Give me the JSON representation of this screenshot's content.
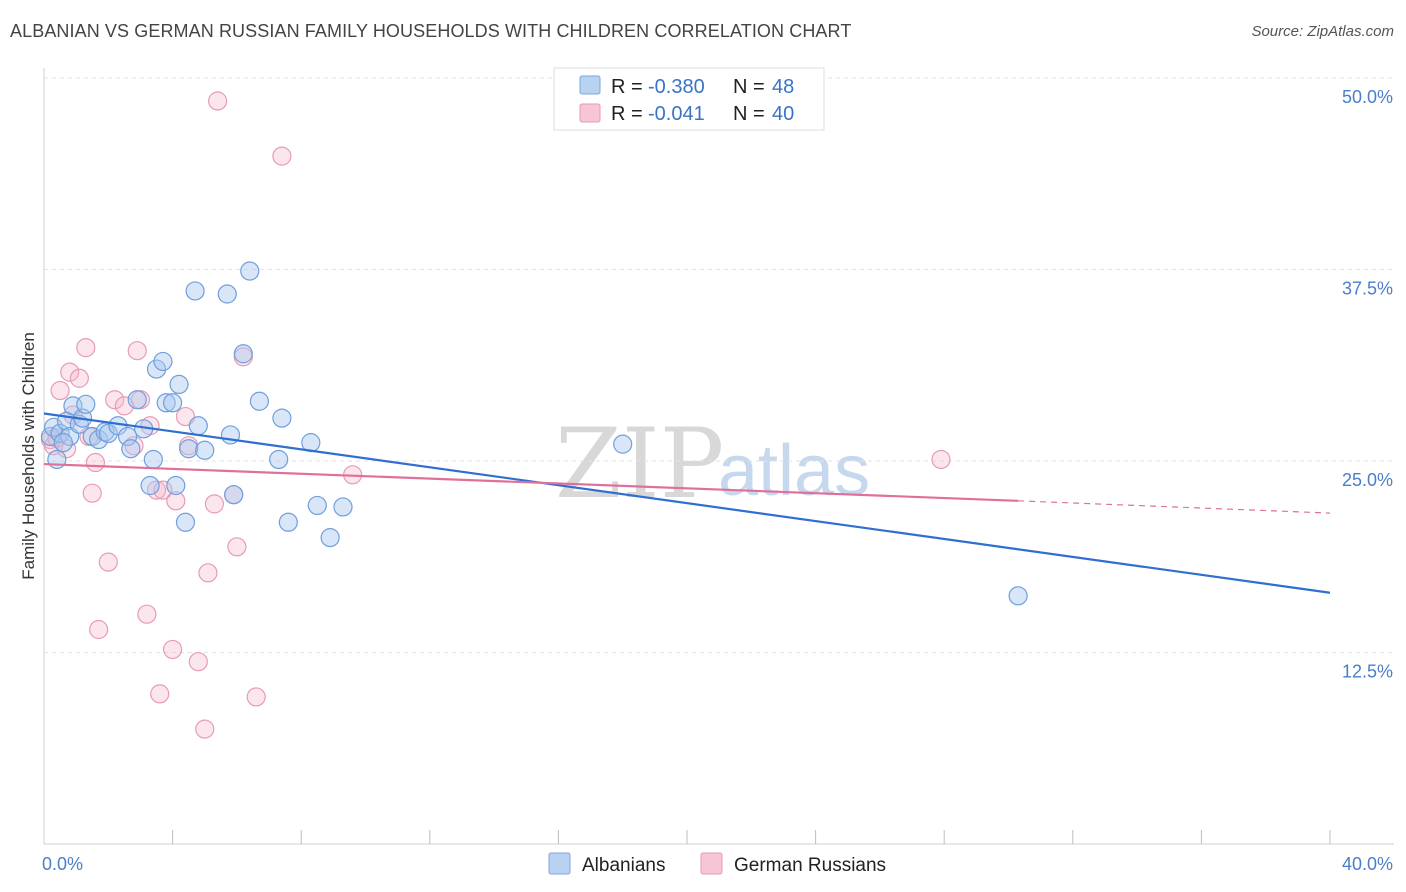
{
  "title": "ALBANIAN VS GERMAN RUSSIAN FAMILY HOUSEHOLDS WITH CHILDREN CORRELATION CHART",
  "source": "Source: ZipAtlas.com",
  "watermark": {
    "zip": "ZIP",
    "atlas": "atlas"
  },
  "colors": {
    "blue": "#4a86d8",
    "blue_fill": "#a9c8f0",
    "pink": "#e07aa0",
    "pink_fill": "#f4b8cc",
    "trend_blue": "#2f6fd0",
    "trend_pink": "#e0709a"
  },
  "legend": {
    "items": [
      {
        "r_label": "R = ",
        "r_value": "-0.380",
        "n_label": "N = ",
        "n_value": "48"
      },
      {
        "r_label": "R = ",
        "r_value": "-0.041",
        "n_label": "N = ",
        "n_value": "40"
      }
    ]
  },
  "bottom_legend": [
    "Albanians",
    "German Russians"
  ],
  "chart_data": {
    "type": "scatter",
    "title": "ALBANIAN VS GERMAN RUSSIAN FAMILY HOUSEHOLDS WITH CHILDREN CORRELATION CHART",
    "xlabel": "",
    "ylabel": "Family Households with Children",
    "xlim": [
      0,
      40
    ],
    "ylim": [
      0,
      52
    ],
    "x_tick_labels": [
      "0.0%",
      "40.0%"
    ],
    "y_ticks": [
      12.5,
      25.0,
      37.5,
      50.0
    ],
    "y_tick_labels": [
      "12.5%",
      "25.0%",
      "37.5%",
      "50.0%"
    ],
    "series": [
      {
        "name": "Albanians",
        "r": -0.38,
        "n": 48,
        "trend": {
          "x": [
            0,
            40
          ],
          "y": [
            28.1,
            16.4
          ]
        },
        "points": [
          [
            0.2,
            26.6
          ],
          [
            0.3,
            27.2
          ],
          [
            0.4,
            25.1
          ],
          [
            0.5,
            26.8
          ],
          [
            0.7,
            27.6
          ],
          [
            0.8,
            26.6
          ],
          [
            0.9,
            28.6
          ],
          [
            1.1,
            27.4
          ],
          [
            1.2,
            27.8
          ],
          [
            1.3,
            28.7
          ],
          [
            1.5,
            26.6
          ],
          [
            1.7,
            26.4
          ],
          [
            1.9,
            26.9
          ],
          [
            2.0,
            26.8
          ],
          [
            2.3,
            27.3
          ],
          [
            2.6,
            26.6
          ],
          [
            2.7,
            25.8
          ],
          [
            2.9,
            29.0
          ],
          [
            3.1,
            27.1
          ],
          [
            3.3,
            23.4
          ],
          [
            3.4,
            25.1
          ],
          [
            3.5,
            31.0
          ],
          [
            3.7,
            31.5
          ],
          [
            3.8,
            28.8
          ],
          [
            4.0,
            28.8
          ],
          [
            4.1,
            23.4
          ],
          [
            4.2,
            30.0
          ],
          [
            4.4,
            21.0
          ],
          [
            4.5,
            25.8
          ],
          [
            4.7,
            36.1
          ],
          [
            4.8,
            27.3
          ],
          [
            5.0,
            25.7
          ],
          [
            5.7,
            35.9
          ],
          [
            5.8,
            26.7
          ],
          [
            5.9,
            22.8
          ],
          [
            6.2,
            32.0
          ],
          [
            6.4,
            37.4
          ],
          [
            6.7,
            28.9
          ],
          [
            7.3,
            25.1
          ],
          [
            7.4,
            27.8
          ],
          [
            7.6,
            21.0
          ],
          [
            8.3,
            26.2
          ],
          [
            8.5,
            22.1
          ],
          [
            8.9,
            20.0
          ],
          [
            9.3,
            22.0
          ],
          [
            18.0,
            26.1
          ],
          [
            30.3,
            16.2
          ],
          [
            0.6,
            26.2
          ]
        ]
      },
      {
        "name": "German Russians",
        "r": -0.041,
        "n": 40,
        "trend": {
          "x": [
            0,
            30.3
          ],
          "y": [
            24.8,
            22.4
          ]
        },
        "trend_dashed": {
          "x": [
            30.3,
            40
          ],
          "y": [
            22.4,
            21.6
          ]
        },
        "points": [
          [
            0.2,
            26.4
          ],
          [
            0.3,
            26.0
          ],
          [
            0.5,
            29.6
          ],
          [
            0.7,
            25.8
          ],
          [
            0.8,
            30.8
          ],
          [
            0.9,
            28.0
          ],
          [
            1.1,
            30.4
          ],
          [
            1.3,
            32.4
          ],
          [
            1.5,
            22.9
          ],
          [
            1.6,
            24.9
          ],
          [
            1.7,
            14.0
          ],
          [
            2.0,
            18.4
          ],
          [
            2.2,
            29.0
          ],
          [
            2.5,
            28.6
          ],
          [
            2.8,
            26.0
          ],
          [
            2.9,
            32.2
          ],
          [
            3.0,
            29.0
          ],
          [
            3.2,
            15.0
          ],
          [
            3.3,
            27.3
          ],
          [
            3.5,
            23.1
          ],
          [
            3.6,
            9.8
          ],
          [
            3.7,
            23.1
          ],
          [
            4.0,
            12.7
          ],
          [
            4.1,
            22.4
          ],
          [
            4.4,
            27.9
          ],
          [
            4.5,
            26.0
          ],
          [
            4.8,
            11.9
          ],
          [
            5.0,
            7.5
          ],
          [
            5.1,
            17.7
          ],
          [
            5.3,
            22.2
          ],
          [
            5.4,
            48.5
          ],
          [
            5.9,
            22.8
          ],
          [
            6.0,
            19.4
          ],
          [
            6.2,
            31.8
          ],
          [
            6.6,
            9.6
          ],
          [
            7.4,
            44.9
          ],
          [
            9.6,
            24.1
          ],
          [
            27.9,
            25.1
          ],
          [
            0.4,
            26.5
          ],
          [
            1.4,
            26.6
          ]
        ]
      }
    ]
  }
}
